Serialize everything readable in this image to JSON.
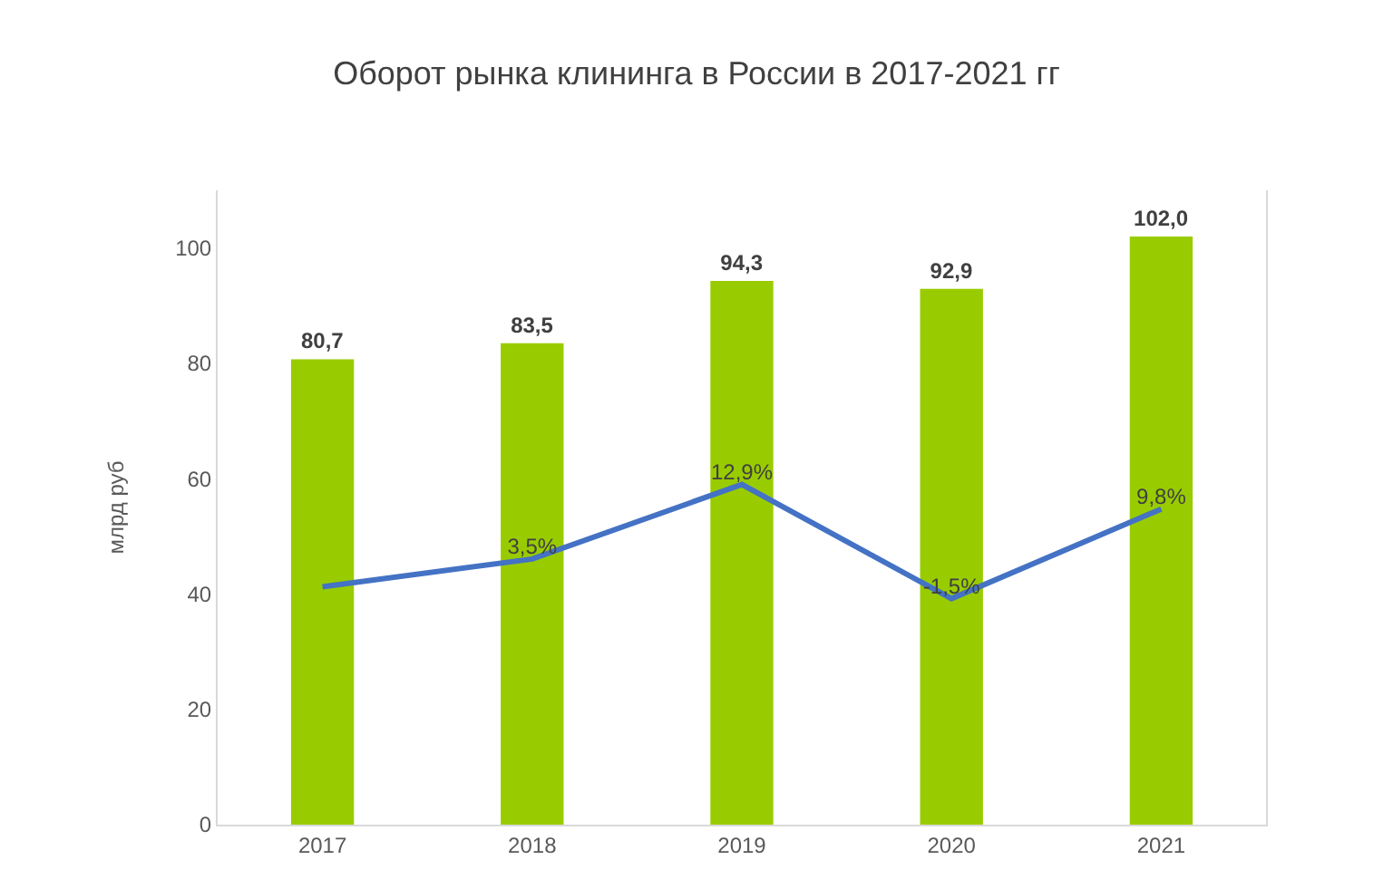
{
  "chart_data": {
    "type": "bar",
    "title": "Оборот рынка клининга в России в 2017-2021 гг",
    "ylabel": "млрд руб",
    "categories": [
      "2017",
      "2018",
      "2019",
      "2020",
      "2021"
    ],
    "series": [
      {
        "color": "#99cc00",
        "values": [
          80.7,
          83.5,
          94.3,
          92.9,
          102.0
        ],
        "value_labels": [
          "80,7",
          "83,5",
          "94,3",
          "92,9",
          "102,0"
        ]
      },
      {
        "type": "line",
        "axis": "y2",
        "color": "#4472c4",
        "values": [
          0,
          3.5,
          12.9,
          -1.5,
          9.8
        ],
        "value_labels": [
          null,
          "3,5%",
          "12,9%",
          "-1,5%",
          "9,8%"
        ],
        "marker": "none",
        "line_style": "solid"
      }
    ],
    "ylim": [
      0,
      110
    ],
    "yticks": [
      0,
      20,
      40,
      60,
      80,
      100
    ],
    "y2lim": [
      -30,
      50
    ],
    "grid": false,
    "legend": false
  }
}
